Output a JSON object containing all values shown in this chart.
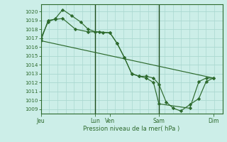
{
  "bg_color": "#cceee8",
  "grid_color": "#aad8d0",
  "line_color": "#2d6a2d",
  "marker_color": "#2d6a2d",
  "xlabel": "Pression niveau de la mer( hPa )",
  "ylim": [
    1008.5,
    1020.8
  ],
  "yticks": [
    1009,
    1010,
    1011,
    1012,
    1013,
    1014,
    1015,
    1016,
    1017,
    1018,
    1019,
    1020
  ],
  "xtick_labels": [
    "Jeu",
    "Lun",
    "Ven",
    "Sam",
    "Dim"
  ],
  "xtick_positions": [
    0,
    0.3,
    0.38,
    0.65,
    0.95
  ],
  "xlim": [
    0.0,
    1.0
  ],
  "series1_x": [
    0.0,
    0.04,
    0.08,
    0.12,
    0.17,
    0.22,
    0.26,
    0.3,
    0.34,
    0.38,
    0.42,
    0.46,
    0.5,
    0.54,
    0.58,
    0.62,
    0.65,
    0.69,
    0.73,
    0.77,
    0.82,
    0.87,
    0.91,
    0.95
  ],
  "series1_y": [
    1017.0,
    1018.8,
    1019.2,
    1020.2,
    1019.5,
    1018.8,
    1018.0,
    1017.7,
    1017.6,
    1017.6,
    1016.4,
    1014.8,
    1013.0,
    1012.7,
    1012.7,
    1012.5,
    1011.8,
    1009.8,
    1009.1,
    1008.8,
    1009.5,
    1010.2,
    1012.1,
    1012.5
  ],
  "series2_x": [
    0.0,
    0.04,
    0.08,
    0.12,
    0.19,
    0.26,
    0.32,
    0.38,
    0.42,
    0.46,
    0.5,
    0.54,
    0.58,
    0.62,
    0.65,
    0.82,
    0.87,
    0.91,
    0.95
  ],
  "series2_y": [
    1016.7,
    1019.0,
    1019.1,
    1019.2,
    1018.0,
    1017.7,
    1017.7,
    1017.6,
    1016.4,
    1014.8,
    1013.0,
    1012.7,
    1012.5,
    1012.0,
    1009.6,
    1009.1,
    1012.1,
    1012.5,
    1012.5
  ],
  "series3_x": [
    0.0,
    0.95
  ],
  "series3_y": [
    1016.7,
    1012.5
  ],
  "vlines_x": [
    0.3,
    0.65
  ],
  "vline_color": "#1a4a1a",
  "spine_color": "#2d6a2d"
}
